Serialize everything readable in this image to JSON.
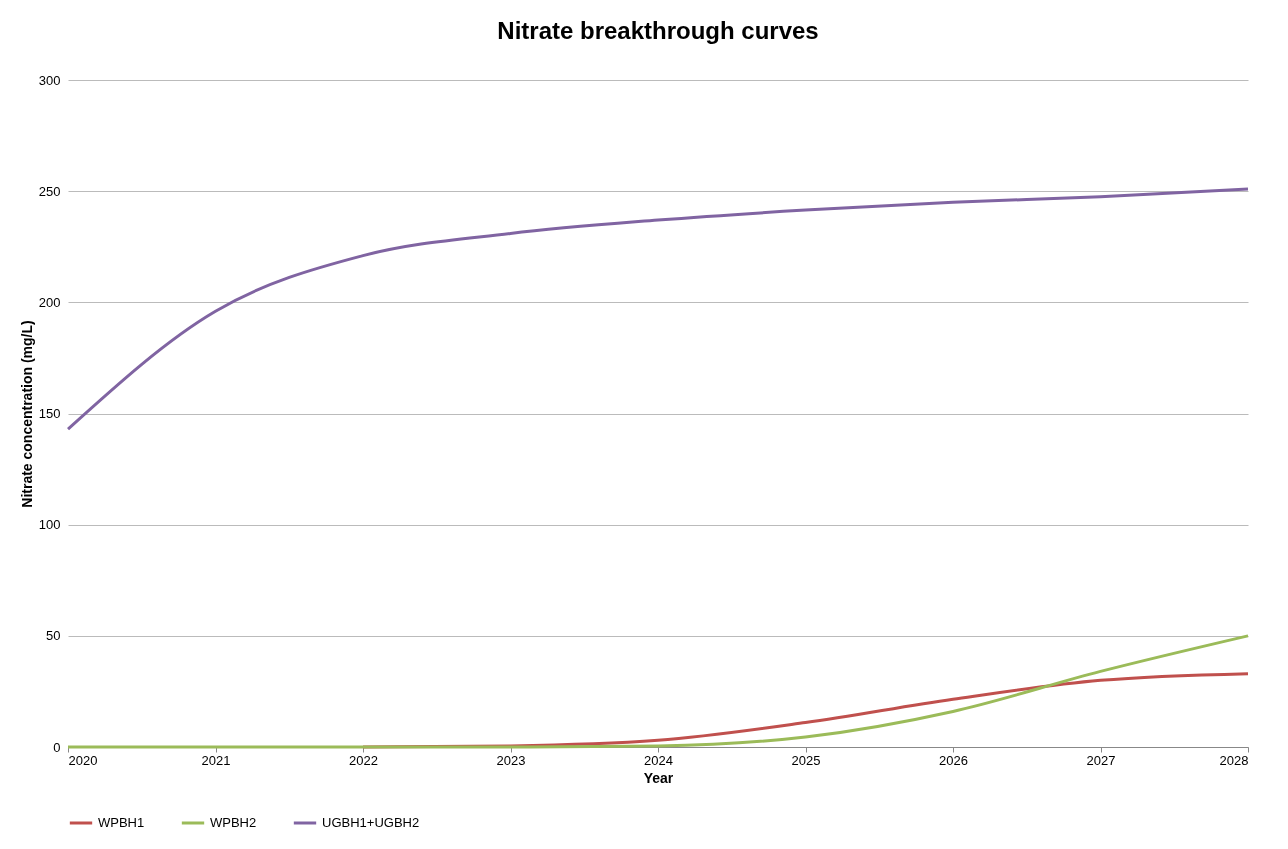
{
  "chart_data": {
    "type": "line",
    "title": "Nitrate breakthrough curves",
    "xlabel": "Year",
    "ylabel": "Nitrate concentration (mg/L)",
    "x": [
      2020,
      2021,
      2022,
      2023,
      2024,
      2025,
      2026,
      2027,
      2028
    ],
    "series": [
      {
        "name": "WPBH1",
        "color": "#c0504d",
        "values": [
          null,
          null,
          0,
          0.5,
          3,
          11,
          21.5,
          30,
          33
        ]
      },
      {
        "name": "WPBH2",
        "color": "#9bbb59",
        "values": [
          0,
          0,
          0,
          0,
          0.5,
          4.5,
          16,
          34,
          50
        ]
      },
      {
        "name": "UGBH1+UGBH2",
        "color": "#8064a2",
        "values": [
          143,
          196,
          221,
          231,
          237,
          241.5,
          245,
          247.5,
          251
        ]
      }
    ],
    "xlim": [
      2020,
      2028
    ],
    "xticks": [
      2020,
      2021,
      2022,
      2023,
      2024,
      2025,
      2026,
      2027,
      2028
    ],
    "ylim": [
      0,
      300
    ],
    "yticks": [
      0,
      50,
      100,
      150,
      200,
      250,
      300
    ],
    "grid": "y",
    "legend": "bottom",
    "line_style": "solid",
    "marker": "none"
  }
}
